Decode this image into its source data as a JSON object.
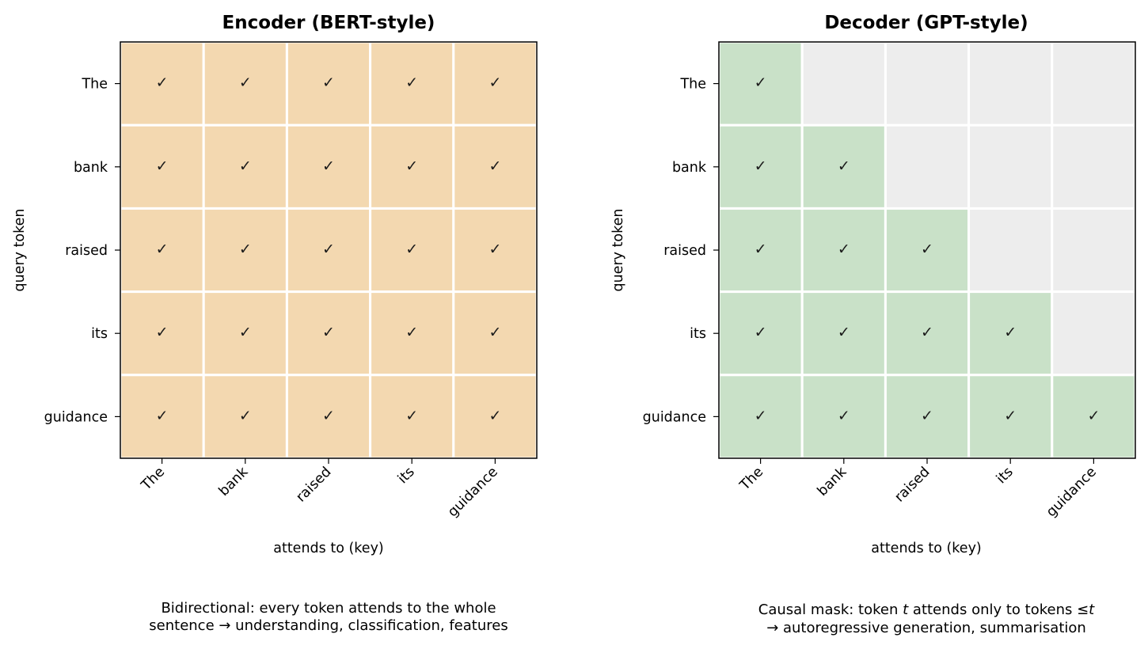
{
  "panels": [
    {
      "title": "Encoder  (BERT-style)",
      "type": "bidirectional",
      "cell_color": "#f3d8b0",
      "ylabel": "query token",
      "xlabel": "attends to (key)",
      "caption_line1": "Bidirectional: every token attends to the whole",
      "caption_line2": "sentence  →  understanding, classification, features"
    },
    {
      "title": "Decoder  (GPT-style)",
      "type": "causal",
      "cell_color": "#c9e1c8",
      "masked_color": "#ededed",
      "ylabel": "query token",
      "xlabel": "attends to (key)",
      "caption_line1_prefix": "Causal mask: token ",
      "caption_line1_var": "t",
      "caption_line1_mid": " attends only to tokens ≤",
      "caption_line1_var2": "t",
      "caption_line2": "→  autoregressive generation, summarisation"
    }
  ],
  "tokens": [
    "The",
    "bank",
    "raised",
    "its",
    "guidance"
  ],
  "check_symbol": "✓",
  "chart_data": [
    {
      "type": "heatmap",
      "title": "Encoder  (BERT-style)",
      "xlabel": "attends to (key)",
      "ylabel": "query token",
      "x": [
        "The",
        "bank",
        "raised",
        "its",
        "guidance"
      ],
      "y": [
        "The",
        "bank",
        "raised",
        "its",
        "guidance"
      ],
      "values": [
        [
          1,
          1,
          1,
          1,
          1
        ],
        [
          1,
          1,
          1,
          1,
          1
        ],
        [
          1,
          1,
          1,
          1,
          1
        ],
        [
          1,
          1,
          1,
          1,
          1
        ],
        [
          1,
          1,
          1,
          1,
          1
        ]
      ]
    },
    {
      "type": "heatmap",
      "title": "Decoder  (GPT-style)",
      "xlabel": "attends to (key)",
      "ylabel": "query token",
      "x": [
        "The",
        "bank",
        "raised",
        "its",
        "guidance"
      ],
      "y": [
        "The",
        "bank",
        "raised",
        "its",
        "guidance"
      ],
      "values": [
        [
          1,
          0,
          0,
          0,
          0
        ],
        [
          1,
          1,
          0,
          0,
          0
        ],
        [
          1,
          1,
          1,
          0,
          0
        ],
        [
          1,
          1,
          1,
          1,
          0
        ],
        [
          1,
          1,
          1,
          1,
          1
        ]
      ]
    }
  ]
}
